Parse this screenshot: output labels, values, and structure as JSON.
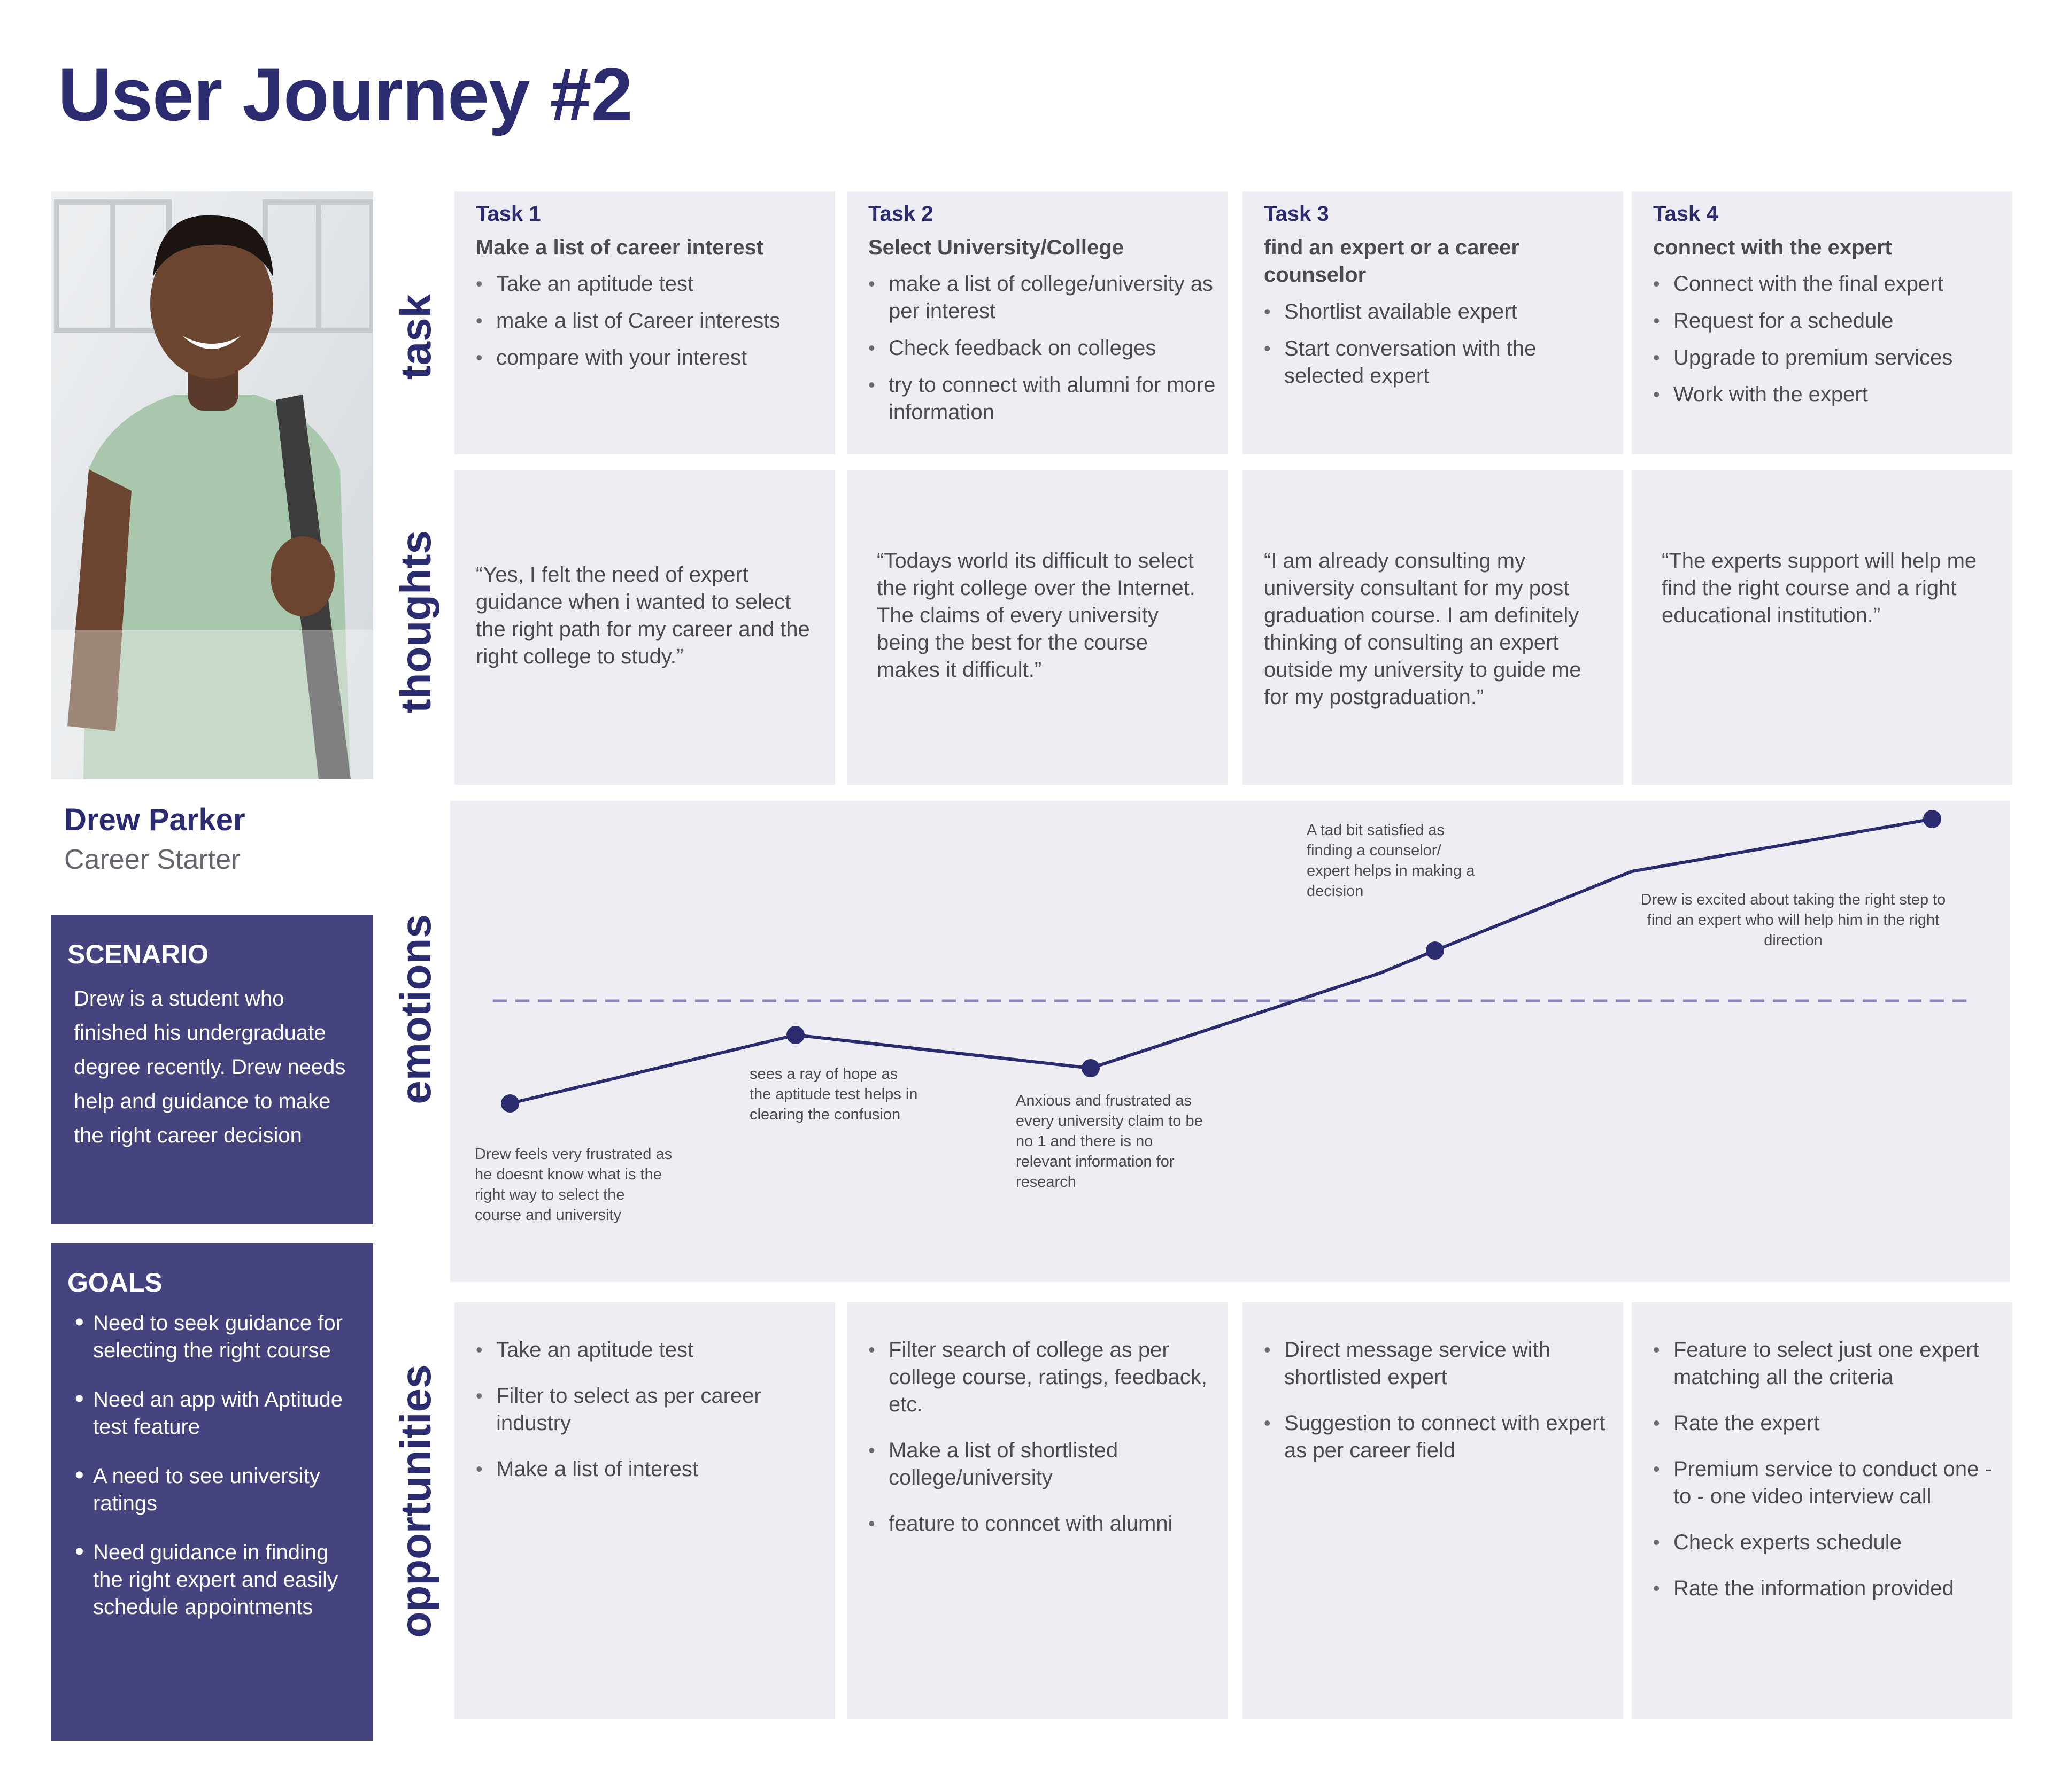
{
  "title": "User Journey #2",
  "persona": {
    "name": "Drew Parker",
    "role": "Career Starter"
  },
  "scenario": {
    "heading": "SCENARIO",
    "text": "Drew is a student who finished his undergraduate degree recently. Drew needs help and guidance to make the right career decision"
  },
  "goals": {
    "heading": "GOALS",
    "items": [
      "Need to seek guidance for selecting the right course",
      "Need an app with Aptitude test feature",
      "A need to see university ratings",
      "Need guidance in finding the right expert and easily schedule appointments"
    ]
  },
  "row_labels": {
    "task": "task",
    "thoughts": "thoughts",
    "emotions": "emotions",
    "opportunities": "opportunities"
  },
  "tasks": [
    {
      "label": "Task 1",
      "title": "Make a list of career interest",
      "items": [
        "Take an aptitude test",
        "make a list of Career interests",
        "compare with your interest"
      ]
    },
    {
      "label": "Task 2",
      "title": "Select University/College",
      "items": [
        "make a list of college/university as per interest",
        "Check feedback on colleges",
        "try to connect with alumni for more information"
      ]
    },
    {
      "label": "Task 3",
      "title": "find an expert or a career counselor",
      "items": [
        "Shortlist available expert",
        "Start conversation with the selected expert"
      ]
    },
    {
      "label": "Task 4",
      "title": "connect with the expert",
      "items": [
        "Connect with the final expert",
        "Request for a schedule",
        "Upgrade to premium services",
        "Work with the expert"
      ]
    }
  ],
  "thoughts": [
    "“Yes, I felt the need of expert guidance when i wanted to select the right path for my career and the right college to study.”",
    "“Todays world its difficult to select the right college over the Internet. The claims of every university being the best for the course makes it difficult.”",
    "“I am already consulting my university consultant for my post graduation course. I am definitely thinking of consulting an expert outside my university to guide me for my postgraduation.”",
    "“The experts support will help me find the right course and a right educational institution.”"
  ],
  "emotions": {
    "line_color": "#2b2b6f",
    "dash_color": "#8a85bf",
    "notes": [
      "Drew feels very frustrated as he doesnt know what is the right way to select the course and university",
      "sees a ray of hope as the aptitude test helps in clearing the confusion",
      "Anxious and frustrated as every university claim to be no 1 and there is no relevant information for research",
      "A tad bit satisfied as finding a counselor/ expert helps in making a decision",
      "Drew is excited about taking the right step to find an expert who will help him in the right direction"
    ]
  },
  "opportunities": [
    [
      "Take an aptitude test",
      "Filter to select as per career industry",
      "Make a list of interest"
    ],
    [
      "Filter search of college as per college course, ratings, feedback, etc.",
      "Make a list of shortlisted college/university",
      "feature to conncet with alumni"
    ],
    [
      "Direct message service with shortlisted expert",
      "Suggestion to connect with expert as per career field"
    ],
    [
      "Feature to select just one expert matching all the criteria",
      "Rate the expert",
      "Premium service to conduct one - to - one video interview call",
      "Check experts schedule",
      "Rate the information provided"
    ]
  ],
  "colors": {
    "brand": "#2b2b6f",
    "panel": "#45447f",
    "cell": "#ededf3"
  }
}
